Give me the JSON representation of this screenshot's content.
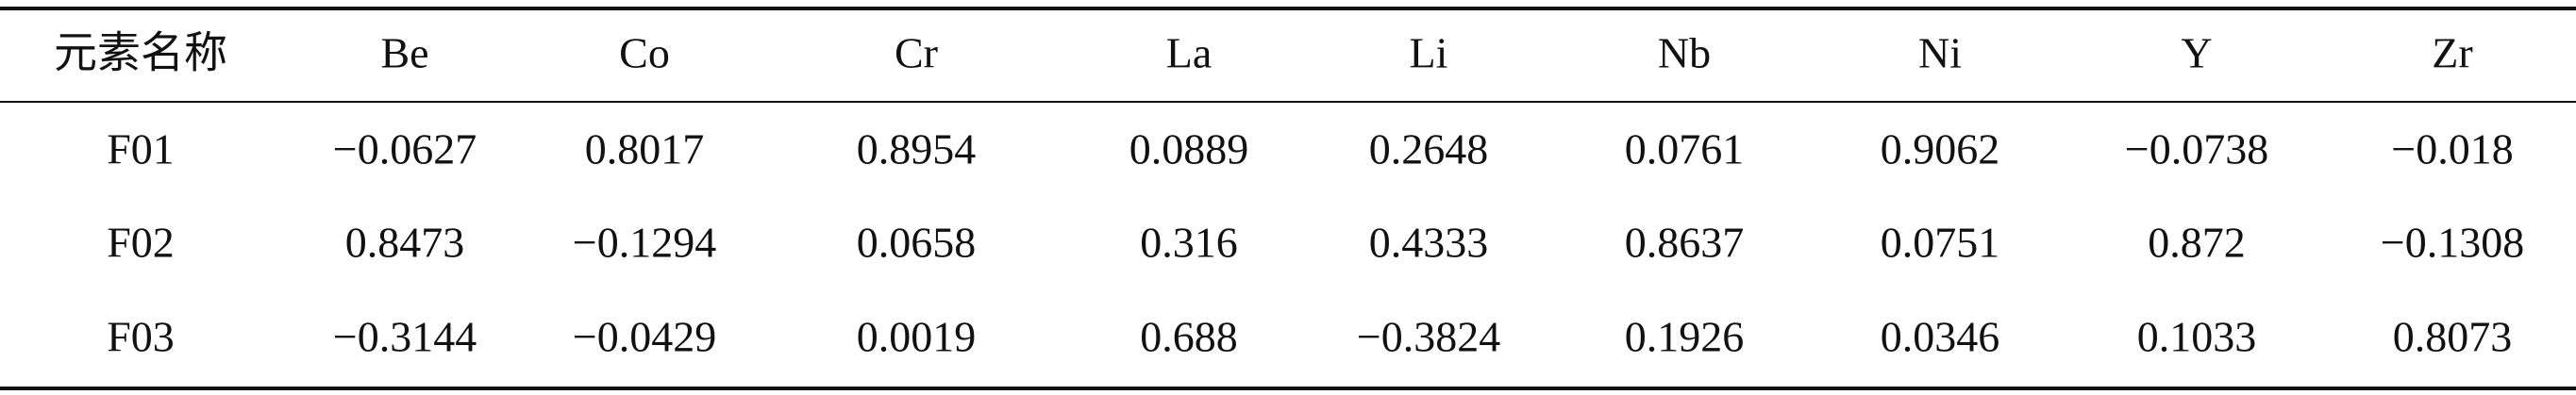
{
  "table": {
    "header": [
      "元素名称",
      "Be",
      "Co",
      "Cr",
      "La",
      "Li",
      "Nb",
      "Ni",
      "Y",
      "Zr"
    ],
    "rows": [
      [
        "F01",
        "−0.0627",
        "0.8017",
        "0.8954",
        "0.0889",
        "0.2648",
        "0.0761",
        "0.9062",
        "−0.0738",
        "−0.018"
      ],
      [
        "F02",
        "0.8473",
        "−0.1294",
        "0.0658",
        "0.316",
        "0.4333",
        "0.8637",
        "0.0751",
        "0.872",
        "−0.1308"
      ],
      [
        "F03",
        "−0.3144",
        "−0.0429",
        "0.0019",
        "0.688",
        "−0.3824",
        "0.1926",
        "0.0346",
        "0.1033",
        "0.8073"
      ]
    ]
  }
}
